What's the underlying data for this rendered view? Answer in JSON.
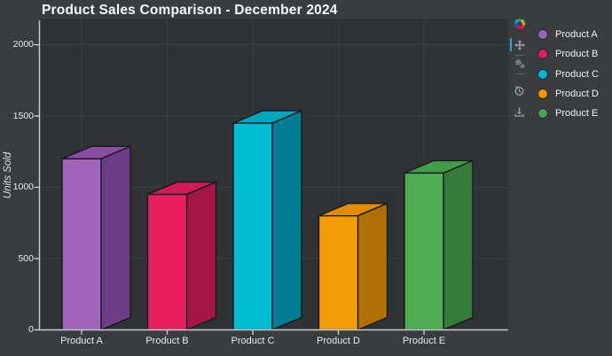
{
  "chart_data": {
    "type": "bar",
    "style": "3d-extruded",
    "title": "Product Sales Comparison - December 2024",
    "categories": [
      "Product A",
      "Product B",
      "Product C",
      "Product D",
      "Product E"
    ],
    "values": [
      1200,
      950,
      1450,
      800,
      1100
    ],
    "xlabel": "",
    "ylabel": "Units Sold",
    "ylim": [
      0,
      2000
    ],
    "yticks": [
      0,
      500,
      1000,
      1500,
      2000
    ],
    "grid": true,
    "legend_position": "top-right",
    "bar_colors": [
      {
        "category": "Product A",
        "front": "#a263bb",
        "top": "#8c4ea4",
        "side": "#6e3d88"
      },
      {
        "category": "Product B",
        "front": "#e81f61",
        "top": "#cf1b56",
        "side": "#a31646"
      },
      {
        "category": "Product C",
        "front": "#00bcd4",
        "top": "#00a6bc",
        "side": "#007d91"
      },
      {
        "category": "Product D",
        "front": "#f59b05",
        "top": "#e08d00",
        "side": "#b07006"
      },
      {
        "category": "Product E",
        "front": "#4fae54",
        "top": "#439c48",
        "side": "#357c3a"
      }
    ]
  },
  "legend": {
    "items": [
      {
        "label": "Product A",
        "color": "#9a63b8"
      },
      {
        "label": "Product B",
        "color": "#e5195e"
      },
      {
        "label": "Product C",
        "color": "#00b8d4"
      },
      {
        "label": "Product D",
        "color": "#f59300"
      },
      {
        "label": "Product E",
        "color": "#4ba251"
      }
    ]
  },
  "toolbar": {
    "tools": [
      "logo",
      "pan",
      "wheel-zoom",
      "reset",
      "save"
    ],
    "active_tool": "pan"
  },
  "colors": {
    "background": "#393d40",
    "plot_background": "#2f3336",
    "grid": "#3b4043",
    "axis": "#c9ced2",
    "tick_label": "#e8eaec",
    "title_text": "#f6f7f8",
    "active_indicator": "#2aa9e0",
    "toolbar_icon": "#9ba1a6"
  }
}
